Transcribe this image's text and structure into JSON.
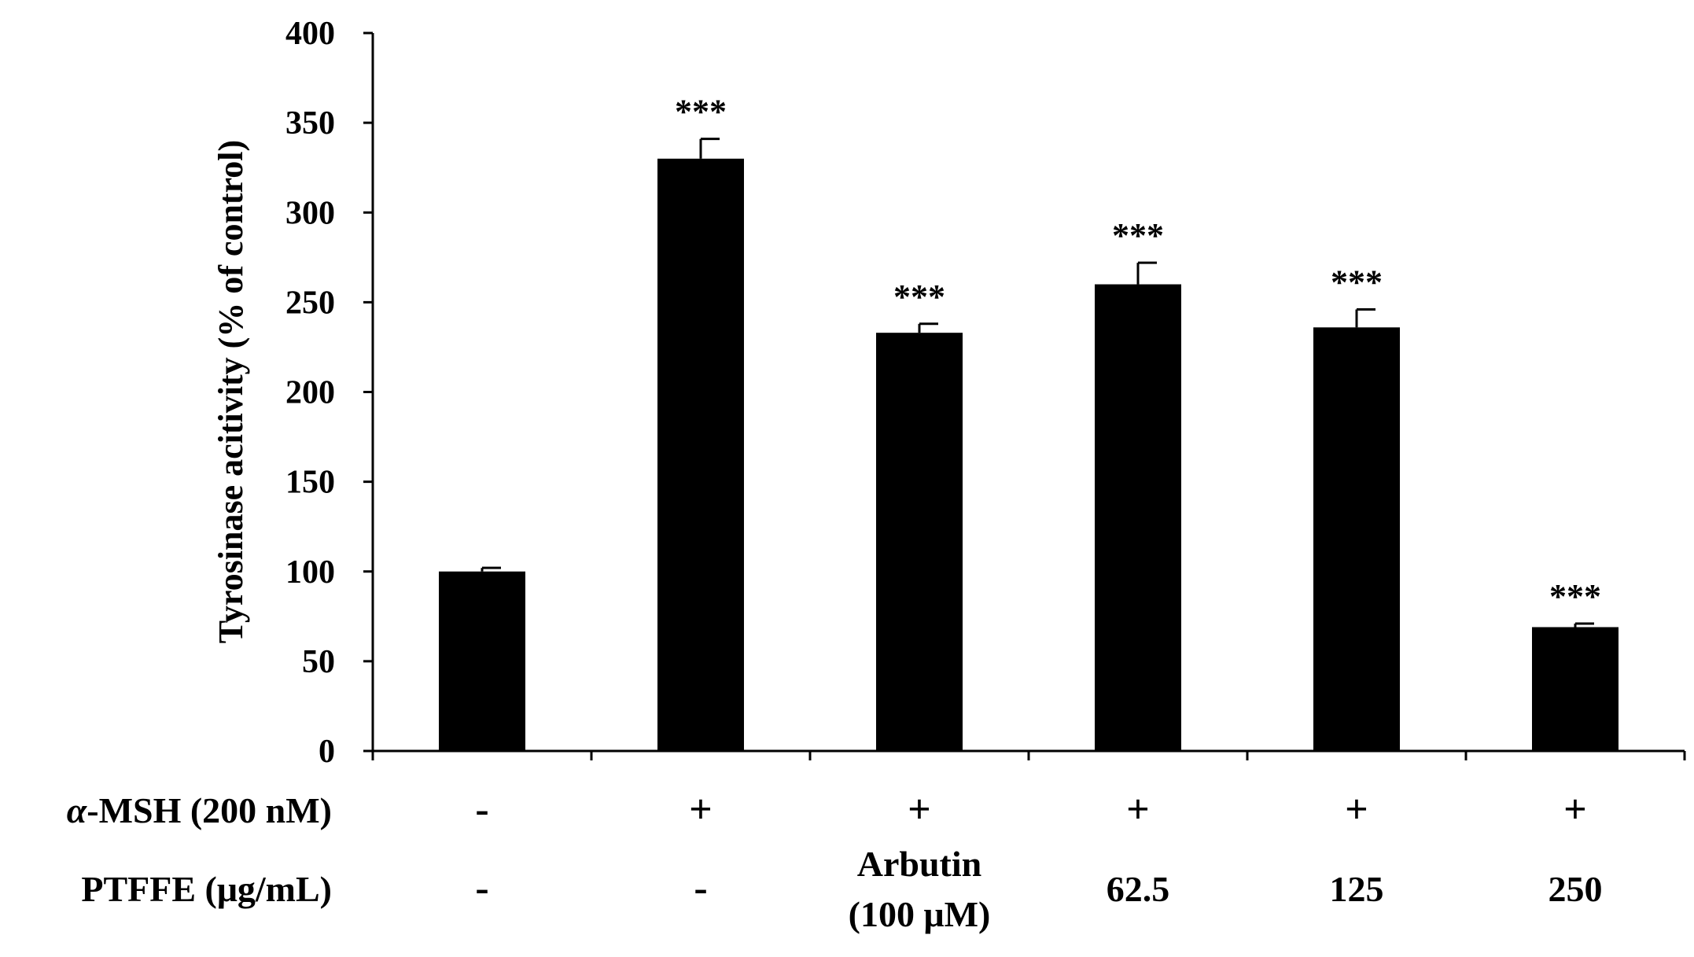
{
  "chart_data": {
    "type": "bar",
    "ylabel": "Tyrosinase acitivity (% of control)",
    "xlabel": "",
    "ylim": [
      0,
      400
    ],
    "yticks": [
      0,
      50,
      100,
      150,
      200,
      250,
      300,
      350,
      400
    ],
    "grid": false,
    "series": [
      {
        "values": [
          100,
          330,
          233,
          260,
          236,
          69
        ],
        "errors": [
          2,
          11,
          5,
          12,
          10,
          2
        ],
        "color": "#000000"
      }
    ],
    "annotations": [
      "",
      "***",
      "***",
      "***",
      "***",
      "***"
    ],
    "row_labels": [
      {
        "label": "α-MSH (200 nM)",
        "values": [
          "-",
          "+",
          "+",
          "+",
          "+",
          "+"
        ]
      },
      {
        "label": "PTFFE (μg/mL)",
        "values": [
          "-",
          "-",
          "Arbutin (100 μM)",
          "62.5",
          "125",
          "250"
        ]
      }
    ]
  }
}
